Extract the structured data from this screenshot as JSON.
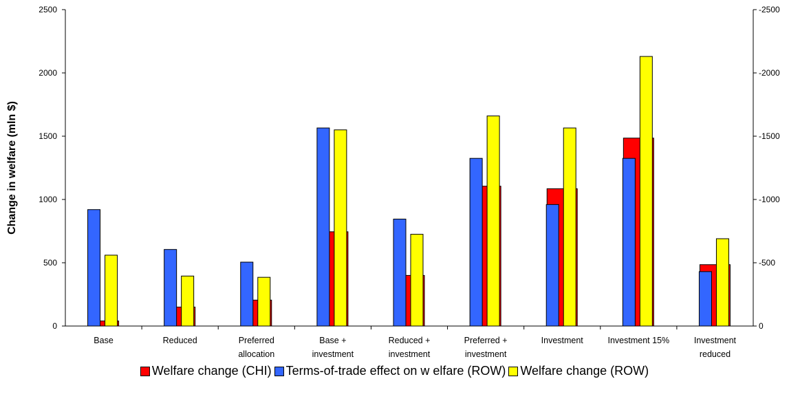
{
  "chart_data": {
    "type": "bar",
    "categories": [
      [
        "Base"
      ],
      [
        "Reduced"
      ],
      [
        "Preferred",
        "allocation"
      ],
      [
        "Base +",
        "investment"
      ],
      [
        "Reduced +",
        "investment"
      ],
      [
        "Preferred +",
        "investment"
      ],
      [
        "Investment"
      ],
      [
        "Investment 15%"
      ],
      [
        "Investment",
        "reduced"
      ]
    ],
    "series": [
      {
        "name": "Welfare change (CHI)",
        "color": "#ff0000",
        "axis": "left",
        "values": [
          40,
          150,
          205,
          745,
          400,
          1105,
          1085,
          1485,
          485
        ]
      },
      {
        "name": "Terms-of-trade effect on w elfare (ROW)",
        "color": "#3366ff",
        "axis": "right",
        "values": [
          -920,
          -605,
          -505,
          -1565,
          -845,
          -1325,
          -960,
          -1325,
          -430
        ]
      },
      {
        "name": "Welfare change (ROW)",
        "color": "#ffff00",
        "axis": "right",
        "values": [
          -560,
          -395,
          -385,
          -1550,
          -725,
          -1660,
          -1565,
          -2130,
          -690
        ]
      }
    ],
    "ylabel": "Change in welfare (mln $)",
    "ylim": [
      0,
      2500
    ],
    "y2lim": [
      0,
      -2500
    ],
    "yticks": [
      "0",
      "500",
      "1000",
      "1500",
      "2000",
      "2500"
    ],
    "y2ticks": [
      "0",
      "-500",
      "-1000",
      "-1500",
      "-2000",
      "-2500"
    ],
    "grid": false,
    "legend": "bottom"
  }
}
